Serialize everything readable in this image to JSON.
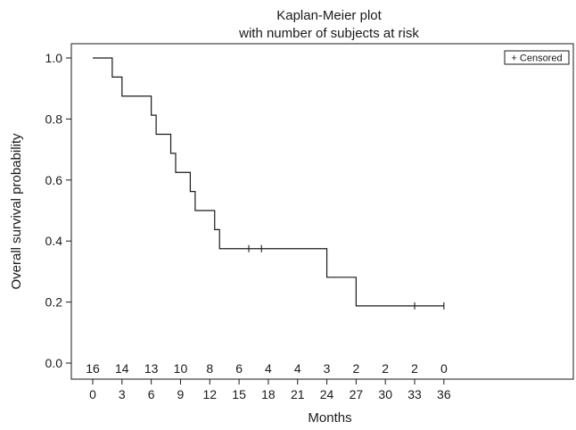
{
  "chart_data": {
    "type": "line",
    "title": [
      "Kaplan-Meier plot",
      "with number of subjects at risk"
    ],
    "xlabel": "Months",
    "ylabel": "Overall survival probability",
    "xlim": [
      -2,
      37
    ],
    "ylim": [
      -0.05,
      1.05
    ],
    "x_ticks": [
      0,
      3,
      6,
      9,
      12,
      15,
      18,
      21,
      24,
      27,
      30,
      33,
      36
    ],
    "y_ticks": [
      "0.0",
      "0.2",
      "0.4",
      "0.6",
      "0.8",
      "1.0"
    ],
    "grid": false,
    "legend": {
      "text": "+ Censored",
      "position": "top-right"
    },
    "colors": {
      "line": "#1a1a1a",
      "axis": "#1a1a1a"
    },
    "series": [
      {
        "type": "step",
        "points": [
          {
            "x": 0,
            "y": 1.0
          },
          {
            "x": 2.0,
            "y": 0.9375
          },
          {
            "x": 3.0,
            "y": 0.875
          },
          {
            "x": 6.0,
            "y": 0.8125
          },
          {
            "x": 6.5,
            "y": 0.75
          },
          {
            "x": 8.0,
            "y": 0.6875
          },
          {
            "x": 8.5,
            "y": 0.625
          },
          {
            "x": 10.0,
            "y": 0.5625
          },
          {
            "x": 10.5,
            "y": 0.5
          },
          {
            "x": 12.5,
            "y": 0.4375
          },
          {
            "x": 13.0,
            "y": 0.375
          },
          {
            "x": 24.0,
            "y": 0.28125
          },
          {
            "x": 27.0,
            "y": 0.1875
          }
        ],
        "end_x": 36.0
      }
    ],
    "censored": [
      {
        "x": 16.0,
        "y": 0.375
      },
      {
        "x": 17.3,
        "y": 0.375
      },
      {
        "x": 33.0,
        "y": 0.1875
      },
      {
        "x": 36.0,
        "y": 0.1875
      }
    ],
    "at_risk": {
      "times": [
        0,
        3,
        6,
        9,
        12,
        15,
        18,
        21,
        24,
        27,
        30,
        33,
        36
      ],
      "counts": [
        "16",
        "14",
        "13",
        "10",
        "8",
        "6",
        "4",
        "4",
        "3",
        "2",
        "2",
        "2",
        "0"
      ]
    }
  }
}
